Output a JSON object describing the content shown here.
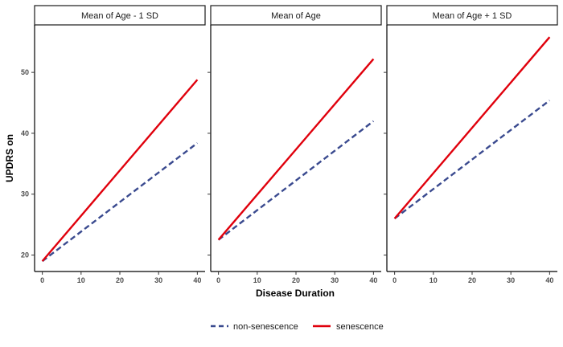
{
  "chart_data": {
    "type": "line",
    "xlabel": "Disease Duration",
    "ylabel": "UPDRS on",
    "xlim": [
      -2,
      42
    ],
    "ylim": [
      17.3,
      57.8
    ],
    "x_ticks": [
      0,
      10,
      20,
      30,
      40
    ],
    "y_ticks": [
      20,
      30,
      40,
      50
    ],
    "grid": false,
    "legend_position": "bottom",
    "colors": {
      "non-senescence": "#3a4a8f",
      "senescence": "#e0000c"
    },
    "panels": [
      {
        "title": "Mean of Age - 1 SD",
        "series": [
          {
            "name": "non-senescence",
            "style": "dashed",
            "x": [
              0,
              40
            ],
            "y": [
              19.0,
              38.4
            ]
          },
          {
            "name": "senescence",
            "style": "solid",
            "x": [
              0,
              40
            ],
            "y": [
              19.0,
              48.8
            ]
          }
        ]
      },
      {
        "title": "Mean of Age",
        "series": [
          {
            "name": "non-senescence",
            "style": "dashed",
            "x": [
              0,
              40
            ],
            "y": [
              22.5,
              42.0
            ]
          },
          {
            "name": "senescence",
            "style": "solid",
            "x": [
              0,
              40
            ],
            "y": [
              22.5,
              52.2
            ]
          }
        ]
      },
      {
        "title": "Mean of Age + 1 SD",
        "series": [
          {
            "name": "non-senescence",
            "style": "dashed",
            "x": [
              0,
              40
            ],
            "y": [
              26.0,
              45.4
            ]
          },
          {
            "name": "senescence",
            "style": "solid",
            "x": [
              0,
              40
            ],
            "y": [
              26.0,
              55.8
            ]
          }
        ]
      }
    ],
    "legend": [
      {
        "name": "non-senescence",
        "style": "dashed"
      },
      {
        "name": "senescence",
        "style": "solid"
      }
    ]
  }
}
